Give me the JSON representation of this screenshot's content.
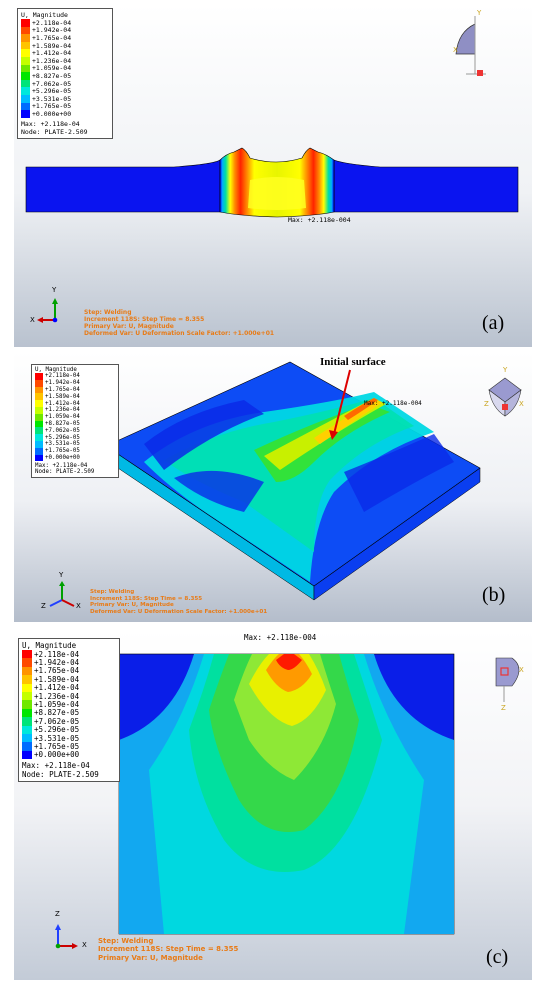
{
  "legend": {
    "title": "U, Magnitude",
    "levels": [
      "+2.118e-04",
      "+1.942e-04",
      "+1.765e-04",
      "+1.589e-04",
      "+1.412e-04",
      "+1.236e-04",
      "+1.059e-04",
      "+8.827e-05",
      "+7.062e-05",
      "+5.296e-05",
      "+3.531e-05",
      "+1.765e-05",
      "+0.000e+00"
    ],
    "colors": [
      "#ff0000",
      "#ff4a00",
      "#ff9400",
      "#ffc400",
      "#ffff00",
      "#c4ff00",
      "#6fe800",
      "#00e600",
      "#00e47a",
      "#00e8dc",
      "#00bcff",
      "#006cff",
      "#0000ff"
    ],
    "max": "Max: +2.118e-04",
    "node": "Node: PLATE-2.509"
  },
  "panels": {
    "a": {
      "label": "(a)",
      "max_text": "Max: +2.118e-004",
      "status": [
        "Step: Welding",
        "Increment    118S: Step Time =    8.355",
        "Primary Var: U, Magnitude",
        "Deformed Var: U   Deformation Scale Factor: +1.000e+01"
      ],
      "axes": {
        "up": "Y",
        "left": "X",
        "center": "Z"
      }
    },
    "b": {
      "label": "(b)",
      "annotation": "Initial surface",
      "max_text": "Max: +2.118e-004",
      "status": [
        "Step: Welding",
        "Increment    118S: Step Time =    8.355",
        "Primary Var: U, Magnitude",
        "Deformed Var: U   Deformation Scale Factor: +1.000e+01"
      ],
      "axes": {
        "up": "Y",
        "left": "Z",
        "right": "X"
      }
    },
    "c": {
      "label": "(c)",
      "max_text": "Max: +2.118e-004",
      "status": [
        "Step: Welding",
        "Increment    118S: Step Time =    8.355",
        "Primary Var: U, Magnitude"
      ],
      "axes": {
        "up": "Z",
        "right": "X",
        "center": "Y"
      }
    }
  }
}
